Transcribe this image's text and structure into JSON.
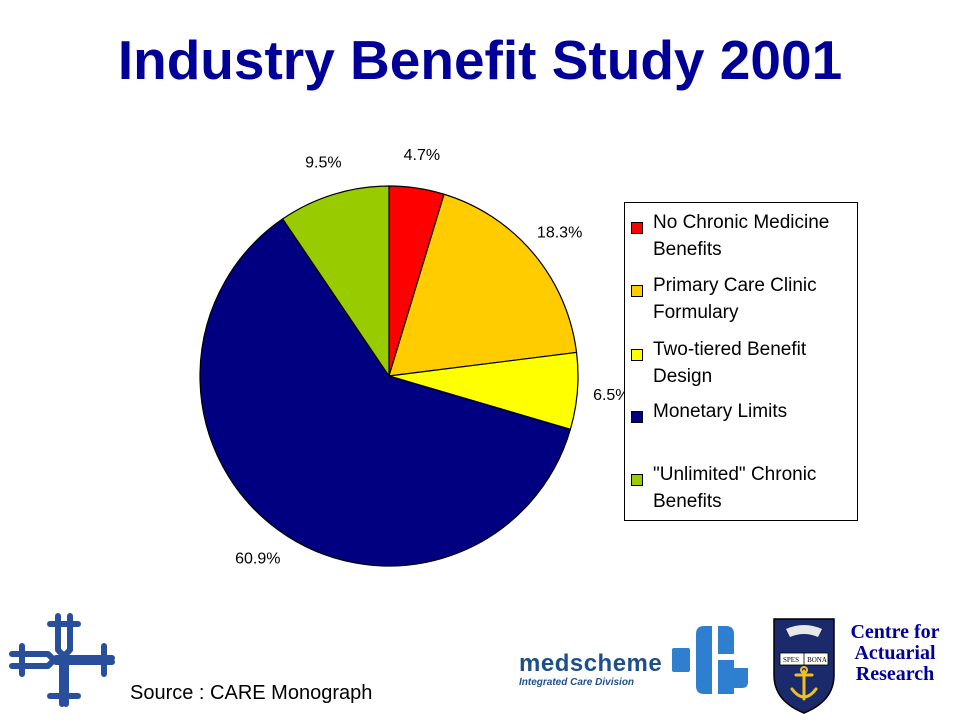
{
  "slide": {
    "title": "Industry Benefit Study 2001",
    "source": "Source : CARE Monograph"
  },
  "chart_data": {
    "type": "pie",
    "title": "",
    "start_angle_degrees": 0,
    "direction": "clockwise",
    "legend_position": "right",
    "slices": [
      {
        "label": "No Chronic Medicine Benefits",
        "value": 4.7,
        "display": "4.7%",
        "color": "#ff0000"
      },
      {
        "label": "Primary Care Clinic Formulary",
        "value": 18.3,
        "display": "18.3%",
        "color": "#ffcc00"
      },
      {
        "label": "Two-tiered Benefit Design",
        "value": 6.5,
        "display": "6.5%",
        "color": "#ffff00"
      },
      {
        "label": "Monetary Limits",
        "value": 60.9,
        "display": "60.9%",
        "color": "#000080"
      },
      {
        "label": "\"Unlimited\" Chronic Benefits",
        "value": 9.5,
        "display": "9.5%",
        "color": "#99cc00"
      }
    ],
    "legend": [
      {
        "line1": "No Chronic Medicine",
        "line2": "Benefits"
      },
      {
        "line1": "Primary Care Clinic",
        "line2": "Formulary"
      },
      {
        "line1": "Two-tiered Benefit",
        "line2": "Design"
      },
      {
        "line1": "Monetary Limits",
        "line2": ""
      },
      {
        "line1": "\"Unlimited\" Chronic",
        "line2": "Benefits"
      }
    ]
  },
  "logos": {
    "medscheme_name": "medscheme",
    "medscheme_division": "Integrated Care Division",
    "crest_motto_left": "SPES",
    "crest_motto_right": "BONA",
    "centre_line1": "Centre for",
    "centre_line2": "Actuarial",
    "centre_line3": "Research"
  },
  "icons": {
    "left_logo": "cross-knot-logo-icon",
    "med_logo": "medscheme-symbol-icon",
    "crest": "university-crest-icon"
  }
}
